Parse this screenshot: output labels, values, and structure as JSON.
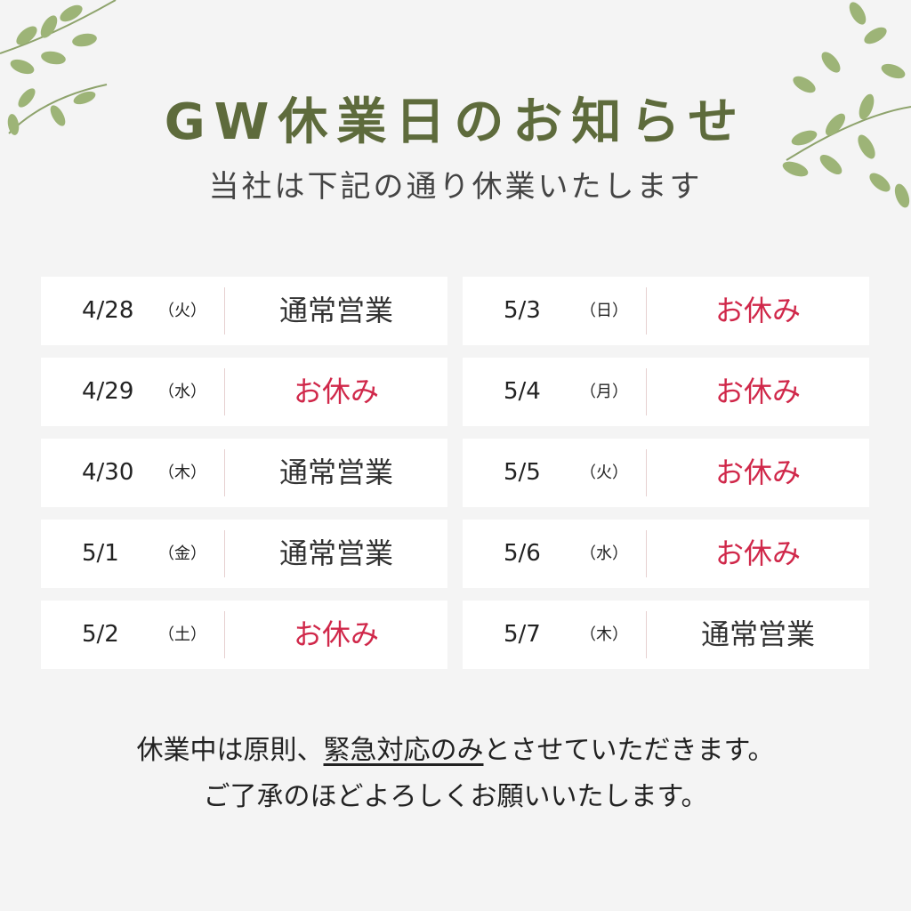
{
  "title": "GW休業日のお知らせ",
  "subtitle": "当社は下記の通り休業いたします",
  "colors": {
    "title": "#5e6b3c",
    "closed": "#d0284a",
    "open": "#333333",
    "leaf": "#8faa62"
  },
  "schedule": {
    "left": [
      {
        "date": "4/28",
        "day": "（火）",
        "status": "通常営業",
        "closed": false
      },
      {
        "date": "4/29",
        "day": "（水）",
        "status": "お休み",
        "closed": true
      },
      {
        "date": "4/30",
        "day": "（木）",
        "status": "通常営業",
        "closed": false
      },
      {
        "date": "5/1",
        "day": "（金）",
        "status": "通常営業",
        "closed": false
      },
      {
        "date": "5/2",
        "day": "（土）",
        "status": "お休み",
        "closed": true
      }
    ],
    "right": [
      {
        "date": "5/3",
        "day": "（日）",
        "status": "お休み",
        "closed": true
      },
      {
        "date": "5/4",
        "day": "（月）",
        "status": "お休み",
        "closed": true
      },
      {
        "date": "5/5",
        "day": "（火）",
        "status": "お休み",
        "closed": true
      },
      {
        "date": "5/6",
        "day": "（水）",
        "status": "お休み",
        "closed": true
      },
      {
        "date": "5/7",
        "day": "（木）",
        "status": "通常営業",
        "closed": false
      }
    ]
  },
  "note": {
    "line1_a": "休業中は原則、",
    "line1_emphasis": "緊急対応のみ",
    "line1_b": "とさせていただきます。",
    "line2": "ご了承のほどよろしくお願いいたします。"
  }
}
